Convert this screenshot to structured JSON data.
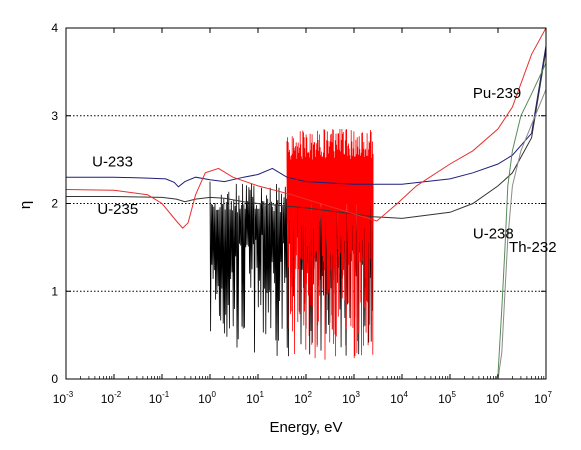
{
  "chart_data": {
    "type": "line",
    "title": "",
    "xlabel": "Energy, eV",
    "ylabel": "η",
    "x_scale": "log",
    "xlim": [
      0.001,
      10000000
    ],
    "ylim": [
      0,
      4
    ],
    "x_ticks": [
      {
        "base": "10",
        "exp": "-3"
      },
      {
        "base": "10",
        "exp": "-2"
      },
      {
        "base": "10",
        "exp": "-1"
      },
      {
        "base": "10",
        "exp": "0"
      },
      {
        "base": "10",
        "exp": "1"
      },
      {
        "base": "10",
        "exp": "2"
      },
      {
        "base": "10",
        "exp": "3"
      },
      {
        "base": "10",
        "exp": "4"
      },
      {
        "base": "10",
        "exp": "5"
      },
      {
        "base": "10",
        "exp": "6"
      },
      {
        "base": "10",
        "exp": "7"
      }
    ],
    "y_ticks": [
      "0",
      "1",
      "2",
      "3",
      "4"
    ],
    "grid": {
      "horizontal_dotted_at": [
        1,
        2,
        3
      ]
    },
    "series": [
      {
        "name": "U-233",
        "color": "#1f1f7a",
        "x": [
          0.001,
          0.01,
          0.05,
          0.12,
          0.18,
          0.22,
          0.3,
          0.5,
          1,
          2,
          5,
          10,
          20,
          40,
          100,
          1000,
          3000,
          10000,
          100000,
          300000,
          1000000,
          2000000,
          5000000,
          10000000
        ],
        "y": [
          2.3,
          2.3,
          2.29,
          2.28,
          2.24,
          2.19,
          2.25,
          2.3,
          2.27,
          2.25,
          2.3,
          2.33,
          2.4,
          2.3,
          2.25,
          2.22,
          2.22,
          2.22,
          2.28,
          2.35,
          2.45,
          2.55,
          2.8,
          3.8
        ]
      },
      {
        "name": "U-235",
        "color": "#333333",
        "x": [
          0.001,
          0.01,
          0.1,
          0.2,
          0.3,
          0.5,
          1,
          2,
          5,
          10,
          100,
          1000,
          2500,
          5000,
          10000,
          100000,
          300000,
          1000000,
          2000000,
          5000000,
          10000000
        ],
        "y": [
          2.08,
          2.08,
          2.07,
          2.05,
          2.02,
          2.05,
          2.07,
          2.06,
          2.02,
          2.0,
          1.95,
          1.88,
          1.85,
          1.84,
          1.83,
          1.9,
          2.0,
          2.2,
          2.35,
          2.75,
          3.75
        ]
      },
      {
        "name": "Pu-239",
        "color": "#e83030",
        "x": [
          0.001,
          0.01,
          0.05,
          0.1,
          0.2,
          0.27,
          0.35,
          0.5,
          0.8,
          1.5,
          3,
          10,
          50,
          3000,
          8000,
          20000,
          100000,
          300000,
          1000000,
          2000000,
          5000000,
          10000000
        ],
        "y": [
          2.16,
          2.15,
          2.1,
          2.0,
          1.8,
          1.72,
          1.78,
          2.1,
          2.35,
          2.4,
          2.3,
          2.2,
          2.1,
          1.8,
          2.0,
          2.2,
          2.45,
          2.6,
          2.85,
          3.1,
          3.7,
          4.0
        ]
      },
      {
        "name": "U-238",
        "color": "#5a8a5a",
        "x": [
          900000,
          1000000,
          1200000,
          1400000,
          1600000,
          2000000,
          3000000,
          5000000,
          10000000
        ],
        "y": [
          0,
          0.05,
          0.8,
          1.5,
          2.2,
          2.6,
          3.0,
          3.25,
          3.6
        ]
      },
      {
        "name": "Th-232",
        "color": "#8a8a8a",
        "x": [
          1000000,
          1200000,
          1400000,
          1600000,
          2000000,
          3000000,
          5000000,
          10000000
        ],
        "y": [
          0,
          0.3,
          1.0,
          1.6,
          2.2,
          2.6,
          2.9,
          3.3
        ]
      }
    ],
    "resonance_regions": [
      {
        "series": "U-235",
        "color": "#000000",
        "x_range": [
          1,
          2500
        ],
        "y_range": [
          0.25,
          2.25
        ]
      },
      {
        "series": "Pu-239",
        "color": "#ff0000",
        "x_range": [
          40,
          2500
        ],
        "y_range": [
          0.2,
          2.85
        ]
      }
    ],
    "annotations": [
      {
        "text": "Pu-239",
        "x": 300000,
        "y": 3.2
      },
      {
        "text": "U-233",
        "x": 0.0035,
        "y": 2.42
      },
      {
        "text": "U-235",
        "x": 0.0045,
        "y": 1.88
      },
      {
        "text": "U-238",
        "x": 300000,
        "y": 1.6
      },
      {
        "text": "Th-232",
        "x": 1700000,
        "y": 1.45
      }
    ]
  }
}
